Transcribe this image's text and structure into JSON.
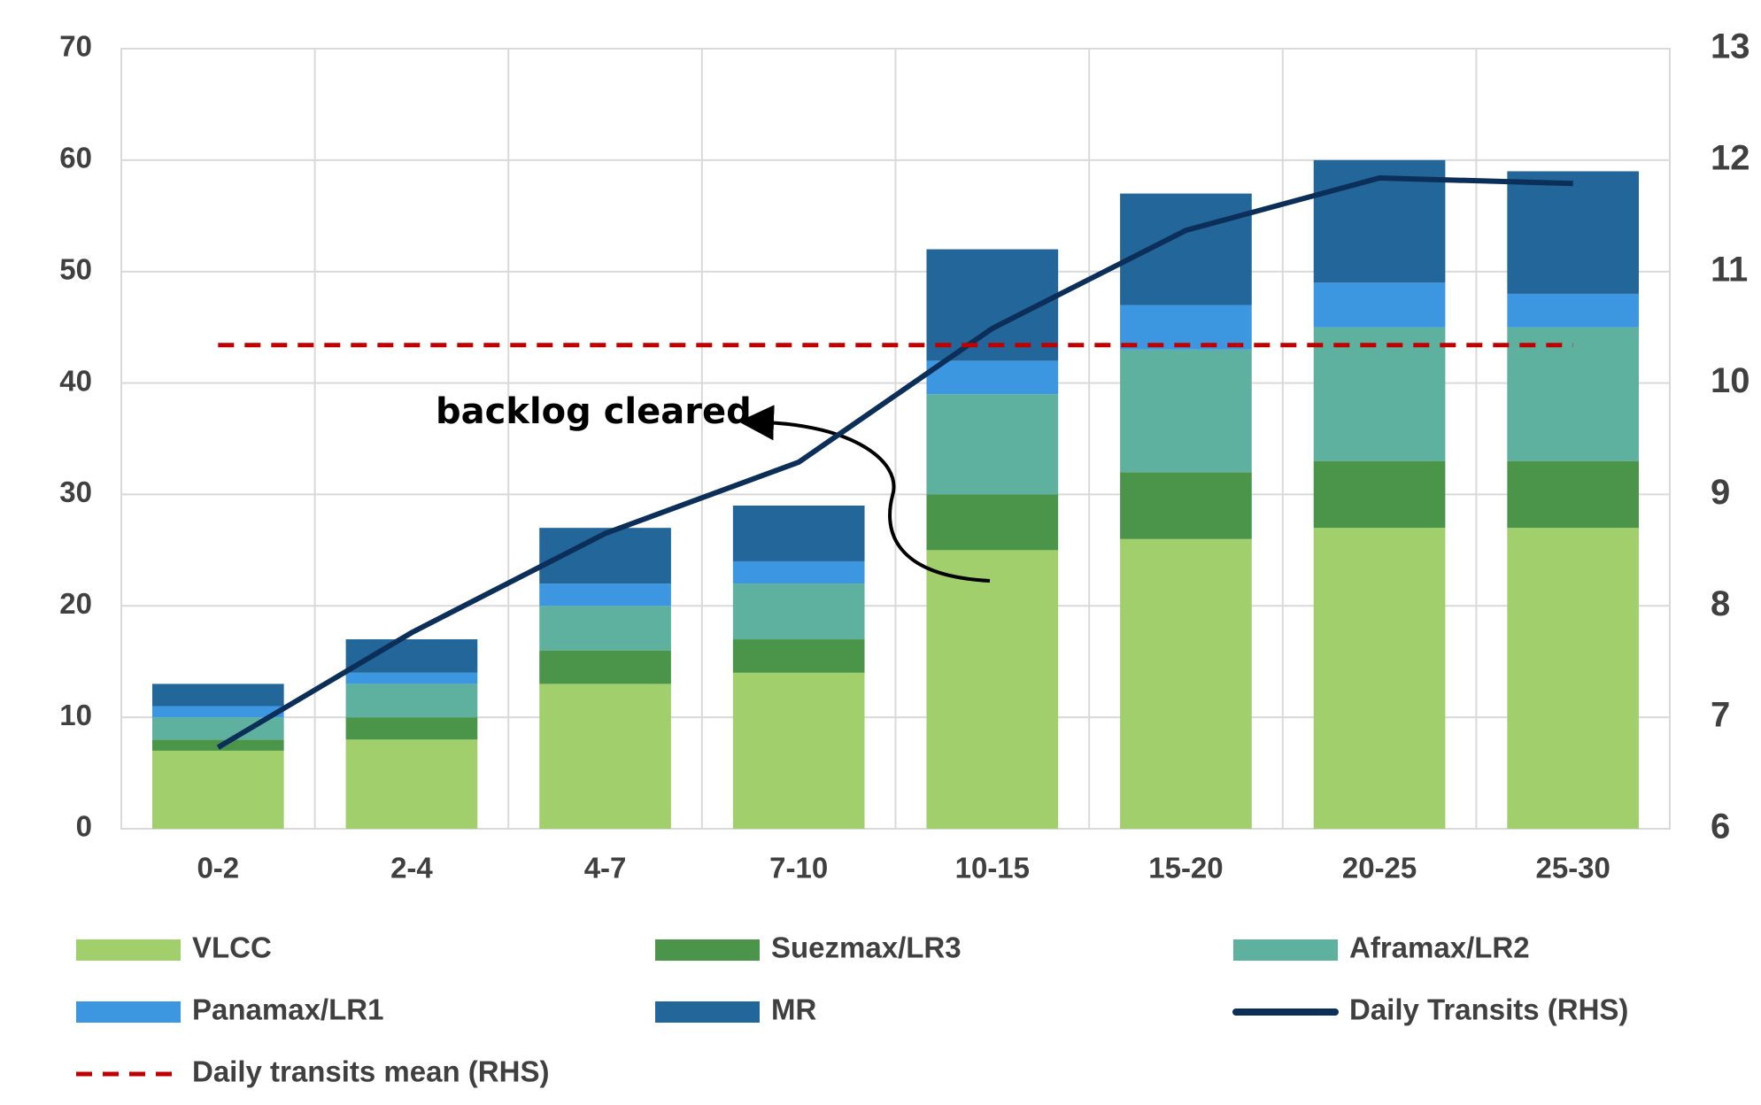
{
  "chart_data": {
    "type": "bar",
    "categories": [
      "0-2",
      "2-4",
      "4-7",
      "7-10",
      "10-15",
      "15-20",
      "20-25",
      "25-30"
    ],
    "series": [
      {
        "name": "VLCC",
        "color": "#a0cf6c",
        "values": [
          7,
          8,
          13,
          14,
          25,
          26,
          27,
          27
        ]
      },
      {
        "name": "Suezmax/LR3",
        "color": "#4a954a",
        "values": [
          1,
          2,
          3,
          3,
          5,
          6,
          6,
          6
        ]
      },
      {
        "name": "Aframax/LR2",
        "color": "#5db19e",
        "values": [
          2,
          3,
          4,
          5,
          9,
          11,
          12,
          12
        ]
      },
      {
        "name": "Panamax/LR1",
        "color": "#3c96e0",
        "values": [
          1,
          1,
          2,
          2,
          3,
          4,
          4,
          3
        ]
      },
      {
        "name": "MR",
        "color": "#236699",
        "values": [
          2,
          3,
          5,
          5,
          10,
          10,
          11,
          11
        ]
      },
      {
        "name": "Daily Transits (RHS)",
        "type": "line",
        "axis": "y2",
        "color": "#0c2f5a",
        "values": [
          6.73,
          7.76,
          8.65,
          9.29,
          10.49,
          11.37,
          11.84,
          11.79
        ]
      },
      {
        "name": "Daily transits mean (RHS)",
        "type": "hline",
        "axis": "y2",
        "color": "#c00000",
        "value": 10.34
      }
    ],
    "ylim": [
      0,
      70
    ],
    "yticks": [
      0,
      10,
      20,
      30,
      40,
      50,
      60,
      70
    ],
    "y2lim": [
      6,
      13
    ],
    "y2ticks": [
      6,
      7,
      8,
      9,
      10,
      11,
      12,
      13
    ],
    "grid": true,
    "annotations": [
      {
        "text": "backlog cleared"
      }
    ]
  }
}
